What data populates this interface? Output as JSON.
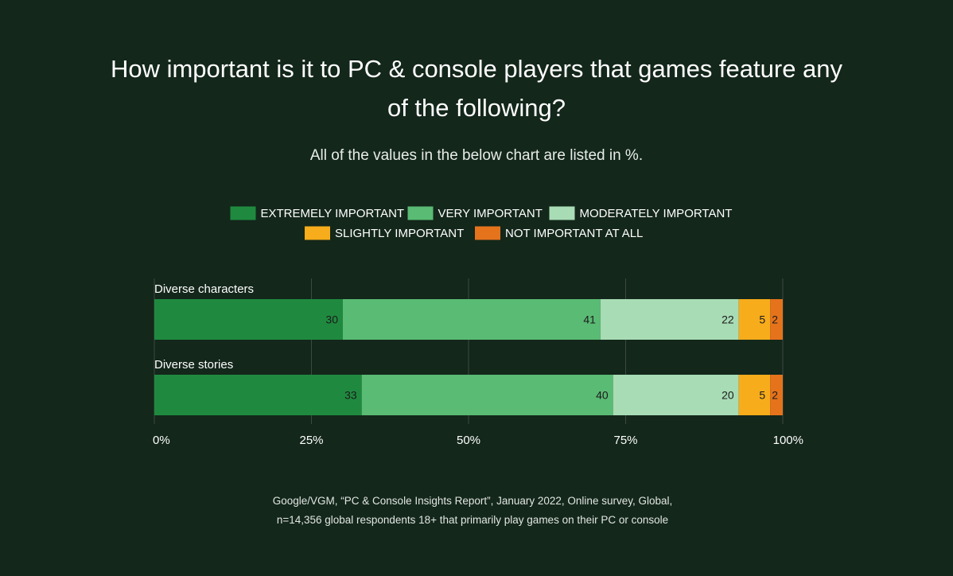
{
  "title_line1": "How important is it to PC & console players that games feature any",
  "title_line2": "of the following?",
  "subtitle": "All of the values in the below chart are listed in %.",
  "source_line1": "Google/VGM, “PC & Console Insights Report”, January 2022, Online survey, Global,",
  "source_line2": "n=14,356 global respondents 18+ that primarily play games on their PC or console",
  "colors": {
    "background": "#13271b",
    "extremely": "#1f8a3f",
    "very": "#5abb74",
    "moderately": "#a8dcb5",
    "slightly": "#f7ac1b",
    "not_at_all": "#e5731c",
    "gridline": "#3c4a41"
  },
  "chart_data": {
    "type": "bar",
    "orientation": "horizontal",
    "stacked": true,
    "title": "How important is it to PC & console players that games feature any of the following?",
    "subtitle": "All of the values in the below chart are listed in %.",
    "categories": [
      "Diverse characters",
      "Diverse stories"
    ],
    "series": [
      {
        "name": "EXTREMELY IMPORTANT",
        "color": "#1f8a3f",
        "values": [
          30,
          33
        ]
      },
      {
        "name": "VERY IMPORTANT",
        "color": "#5abb74",
        "values": [
          41,
          40
        ]
      },
      {
        "name": "MODERATELY IMPORTANT",
        "color": "#a8dcb5",
        "values": [
          22,
          20
        ]
      },
      {
        "name": "SLIGHTLY IMPORTANT",
        "color": "#f7ac1b",
        "values": [
          5,
          5
        ]
      },
      {
        "name": "NOT IMPORTANT AT ALL",
        "color": "#e5731c",
        "values": [
          2,
          2
        ]
      }
    ],
    "xlim": [
      0,
      100
    ],
    "xticks": [
      0,
      25,
      50,
      75,
      100
    ],
    "xtick_labels": [
      "0%",
      "25%",
      "50%",
      "75%",
      "100%"
    ],
    "grid": true,
    "legend": "top-center",
    "xlabel": "",
    "ylabel": ""
  }
}
